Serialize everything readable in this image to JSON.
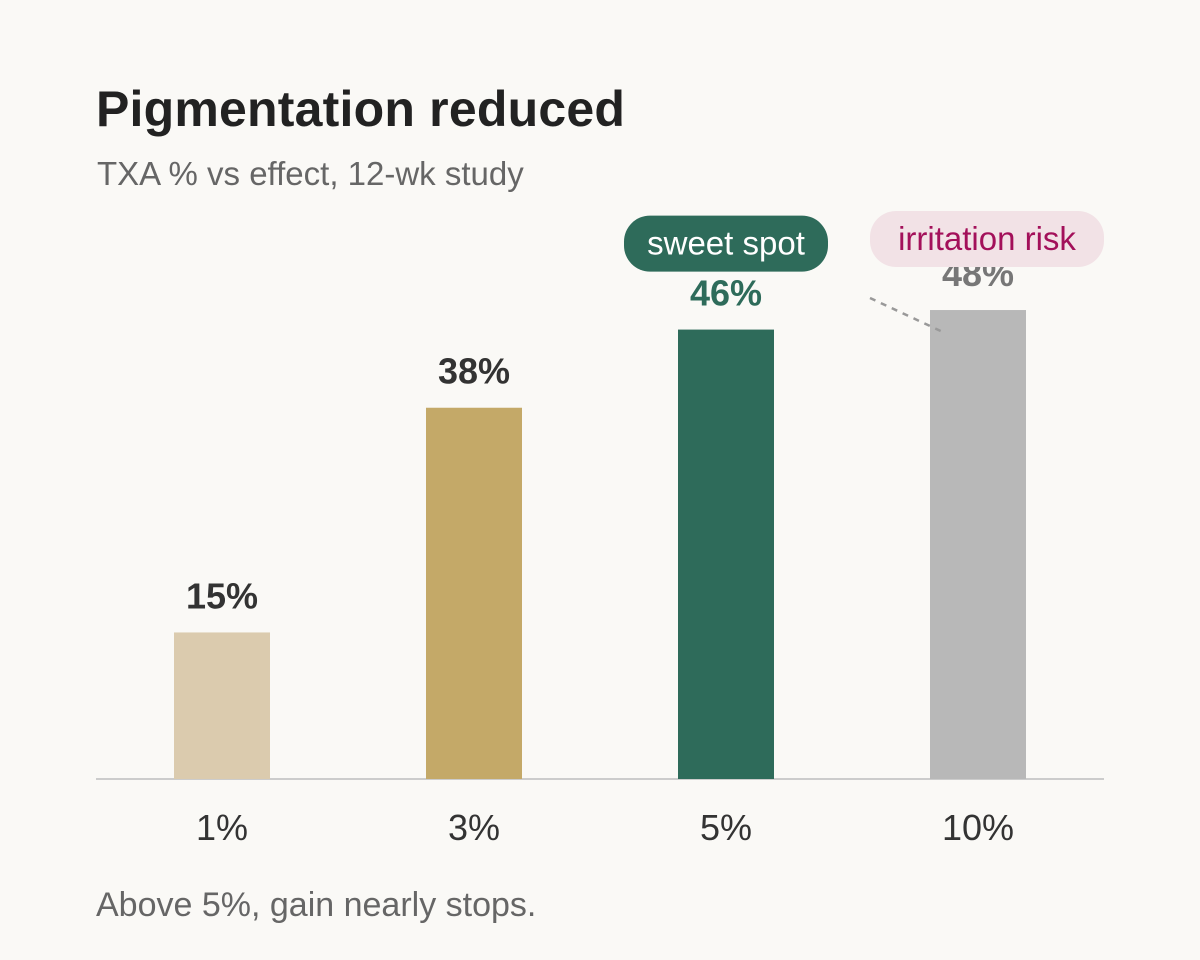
{
  "chart_data": {
    "type": "bar",
    "title": "Pigmentation reduced",
    "subtitle": "TXA % vs effect, 12-wk study",
    "categories": [
      "1%",
      "3%",
      "5%",
      "10%"
    ],
    "values": [
      15,
      38,
      46,
      48
    ],
    "value_labels": [
      "15%",
      "38%",
      "46%",
      "48%"
    ],
    "value_unit": "%",
    "ylim": [
      0,
      50
    ],
    "grid": false,
    "bar_colors": [
      "#dbcbae",
      "#c4a968",
      "#2e6b5a",
      "#b8b8b8"
    ],
    "value_label_colors": [
      "#333333",
      "#333333",
      "#2e6b5a",
      "#777777"
    ],
    "annotations": [
      {
        "text": "sweet spot",
        "category": "5%",
        "style": "filled",
        "background": "#2e6b5a",
        "text_color": "#ffffff"
      },
      {
        "text": "irritation risk",
        "category": "10%",
        "style": "tinted",
        "background": "#f2e2e6",
        "text_color": "#a3105a",
        "connector": "dashed"
      }
    ],
    "footnote": "Above 5%, gain nearly stops."
  }
}
